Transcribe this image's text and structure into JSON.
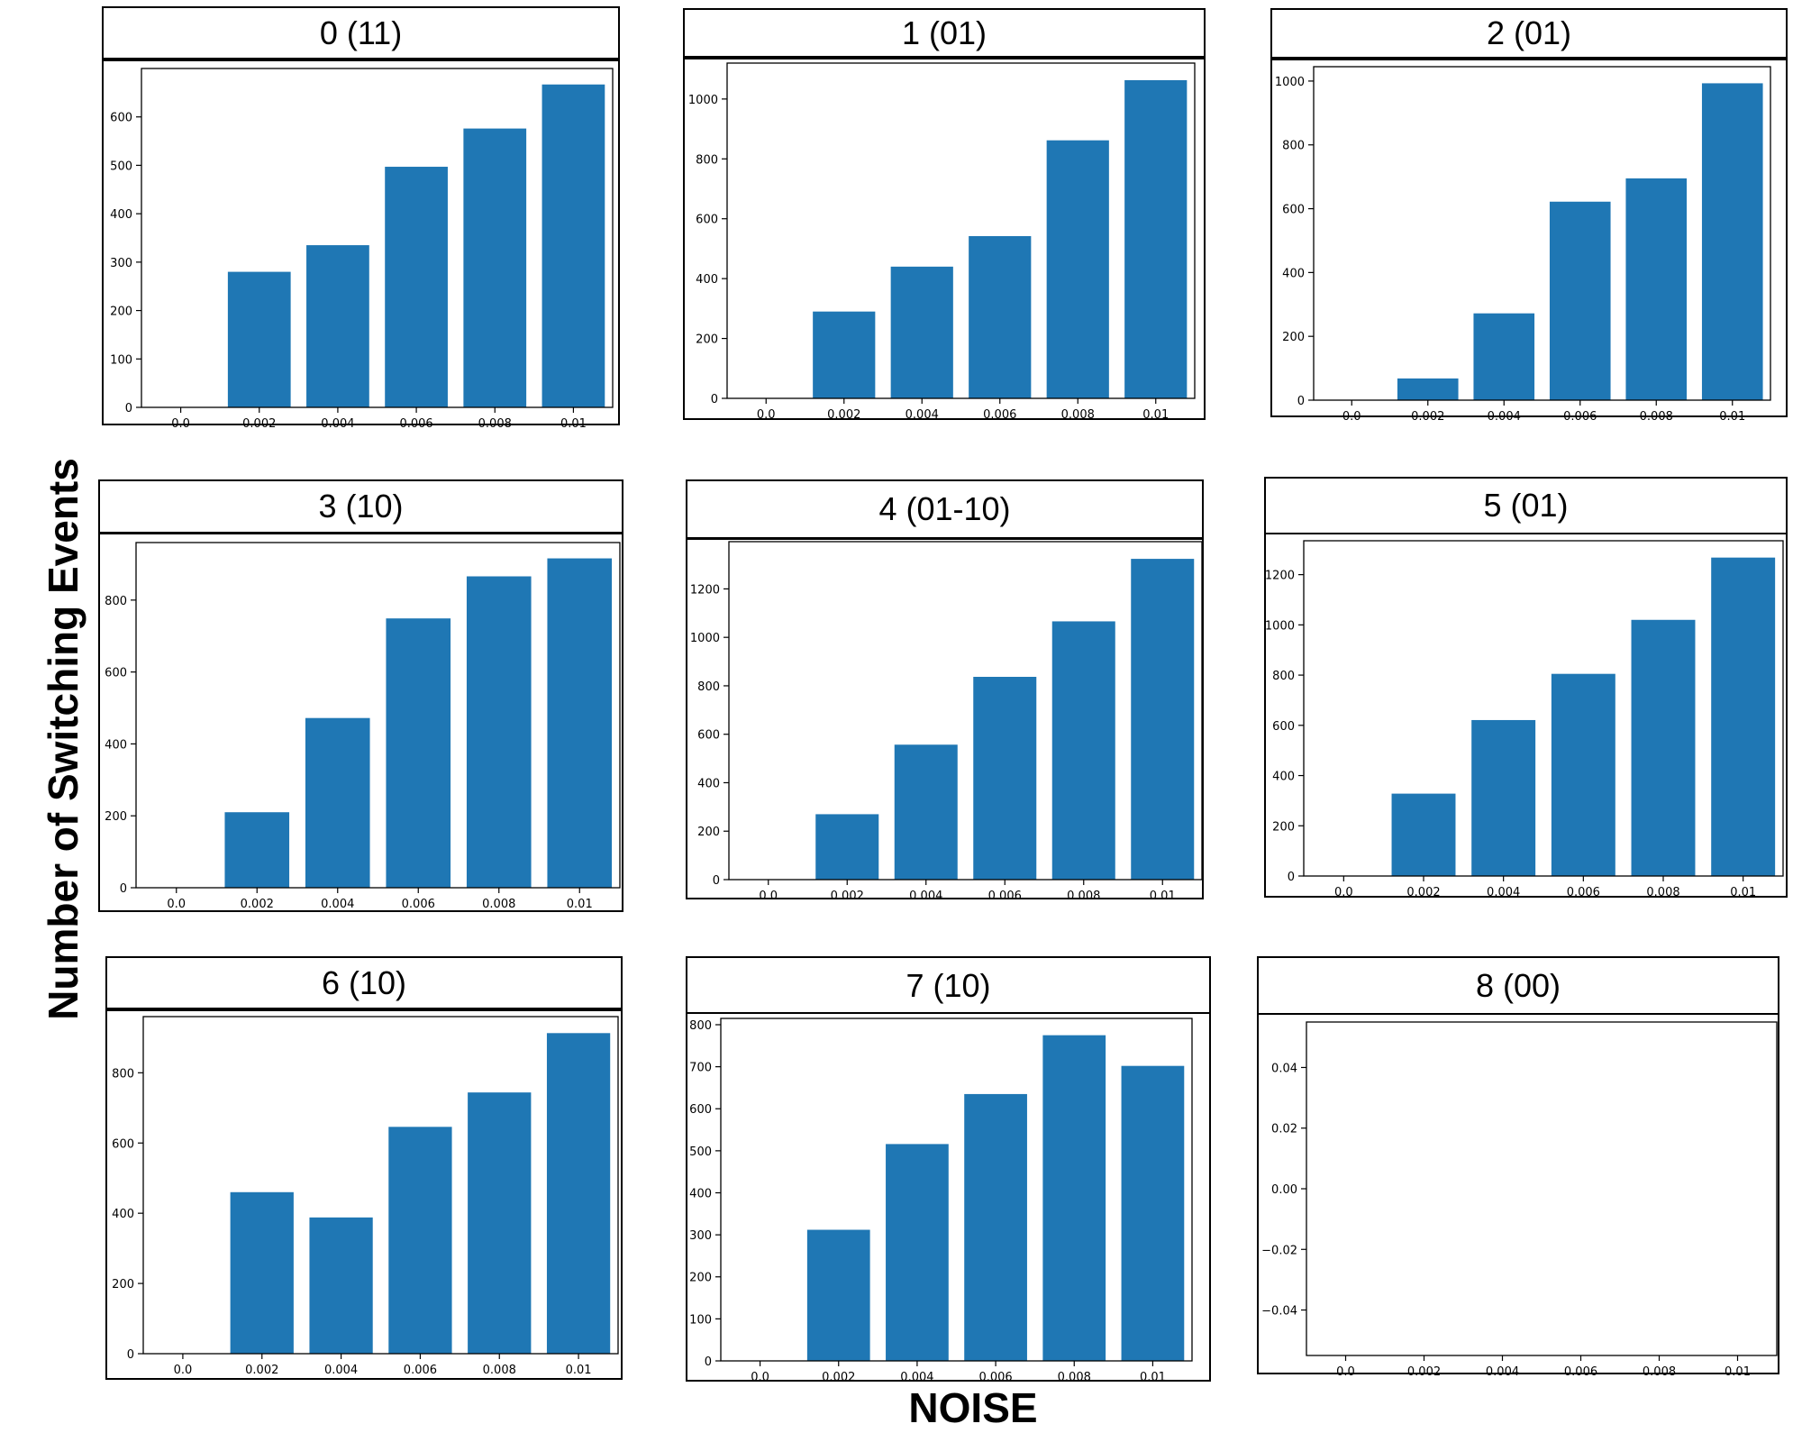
{
  "figure": {
    "ylabel": "Number of Switching Events",
    "xlabel": "NOISE",
    "bar_color": "#1f77b4"
  },
  "chart_data": [
    {
      "type": "bar",
      "title": "0 (11)",
      "categories": [
        "0.0",
        "0.002",
        "0.004",
        "0.006",
        "0.008",
        "0.01"
      ],
      "values": [
        0,
        280,
        335,
        497,
        576,
        667
      ],
      "ylim": [
        0,
        700
      ],
      "yticks": [
        0,
        100,
        200,
        300,
        400,
        500,
        600
      ]
    },
    {
      "type": "bar",
      "title": "1 (01)",
      "categories": [
        "0.0",
        "0.002",
        "0.004",
        "0.006",
        "0.008",
        "0.01"
      ],
      "values": [
        0,
        290,
        440,
        542,
        862,
        1063
      ],
      "ylim": [
        0,
        1120
      ],
      "yticks": [
        0,
        200,
        400,
        600,
        800,
        1000
      ]
    },
    {
      "type": "bar",
      "title": "2 (01)",
      "categories": [
        "0.0",
        "0.002",
        "0.004",
        "0.006",
        "0.008",
        "0.01"
      ],
      "values": [
        0,
        68,
        272,
        622,
        695,
        993
      ],
      "ylim": [
        0,
        1045
      ],
      "yticks": [
        0,
        200,
        400,
        600,
        800,
        1000
      ]
    },
    {
      "type": "bar",
      "title": "3 (10)",
      "categories": [
        "0.0",
        "0.002",
        "0.004",
        "0.006",
        "0.008",
        "0.01"
      ],
      "values": [
        0,
        210,
        472,
        749,
        866,
        916
      ],
      "ylim": [
        0,
        960
      ],
      "yticks": [
        0,
        200,
        400,
        600,
        800
      ]
    },
    {
      "type": "bar",
      "title": "4 (01-10)",
      "categories": [
        "0.0",
        "0.002",
        "0.004",
        "0.006",
        "0.008",
        "0.01"
      ],
      "values": [
        0,
        270,
        557,
        837,
        1066,
        1324
      ],
      "ylim": [
        0,
        1395
      ],
      "yticks": [
        0,
        200,
        400,
        600,
        800,
        1000,
        1200
      ]
    },
    {
      "type": "bar",
      "title": "5 (01)",
      "categories": [
        "0.0",
        "0.002",
        "0.004",
        "0.006",
        "0.008",
        "0.01"
      ],
      "values": [
        0,
        328,
        621,
        805,
        1020,
        1268
      ],
      "ylim": [
        0,
        1335
      ],
      "yticks": [
        0,
        200,
        400,
        600,
        800,
        1000,
        1200
      ]
    },
    {
      "type": "bar",
      "title": "6 (10)",
      "categories": [
        "0.0",
        "0.002",
        "0.004",
        "0.006",
        "0.008",
        "0.01"
      ],
      "values": [
        0,
        460,
        388,
        646,
        744,
        913
      ],
      "ylim": [
        0,
        960
      ],
      "yticks": [
        0,
        200,
        400,
        600,
        800
      ]
    },
    {
      "type": "bar",
      "title": "7 (10)",
      "categories": [
        "0.0",
        "0.002",
        "0.004",
        "0.006",
        "0.008",
        "0.01"
      ],
      "values": [
        0,
        312,
        516,
        635,
        775,
        702
      ],
      "ylim": [
        0,
        815
      ],
      "yticks": [
        0,
        100,
        200,
        300,
        400,
        500,
        600,
        700,
        800
      ]
    },
    {
      "type": "bar",
      "title": "8 (00)",
      "categories": [
        "0.0",
        "0.002",
        "0.004",
        "0.006",
        "0.008",
        "0.01"
      ],
      "values": [
        0,
        0,
        0,
        0,
        0,
        0
      ],
      "ylim": [
        -0.055,
        0.055
      ],
      "yticks": [
        -0.04,
        -0.02,
        0.0,
        0.02,
        0.04
      ],
      "ytick_labels": [
        "−0.04",
        "−0.02",
        "0.00",
        "0.02",
        "0.04"
      ]
    }
  ]
}
